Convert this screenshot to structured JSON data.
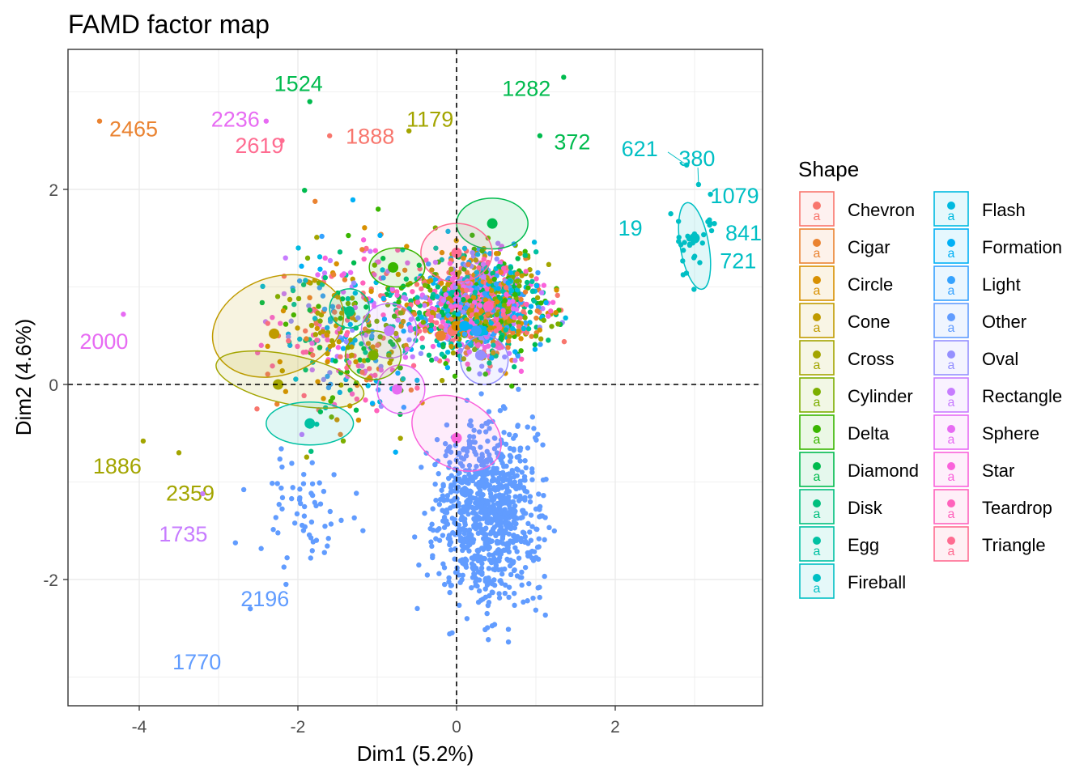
{
  "chart_data": {
    "type": "scatter",
    "title": "FAMD factor map",
    "xlabel": "Dim1 (5.2%)",
    "ylabel": "Dim2 (4.6%)",
    "xlim": [
      -4.8,
      3.9
    ],
    "ylim": [
      -3.3,
      3.4
    ],
    "xticks": [
      -4,
      -2,
      0,
      2
    ],
    "yticks": [
      -2,
      0,
      2
    ],
    "grid": true,
    "reference_lines": {
      "x": 0,
      "y": 0,
      "style": "dashed"
    },
    "legend": {
      "title": "Shape",
      "placement": "right",
      "entries": [
        {
          "name": "Chevron",
          "color": "#F8766D"
        },
        {
          "name": "Cigar",
          "color": "#EA8331"
        },
        {
          "name": "Circle",
          "color": "#D89000"
        },
        {
          "name": "Cone",
          "color": "#C09B00"
        },
        {
          "name": "Cross",
          "color": "#A3A500"
        },
        {
          "name": "Cylinder",
          "color": "#7CAE00"
        },
        {
          "name": "Delta",
          "color": "#39B600"
        },
        {
          "name": "Diamond",
          "color": "#00BB4E"
        },
        {
          "name": "Disk",
          "color": "#00BF7D"
        },
        {
          "name": "Egg",
          "color": "#00C1A3"
        },
        {
          "name": "Fireball",
          "color": "#00BFC4"
        },
        {
          "name": "Flash",
          "color": "#00BAE0"
        },
        {
          "name": "Formation",
          "color": "#00B0F6"
        },
        {
          "name": "Light",
          "color": "#35A2FF"
        },
        {
          "name": "Other",
          "color": "#619CFF"
        },
        {
          "name": "Oval",
          "color": "#9590FF"
        },
        {
          "name": "Rectangle",
          "color": "#C77CFF"
        },
        {
          "name": "Sphere",
          "color": "#E76BF3"
        },
        {
          "name": "Star",
          "color": "#FA62DB"
        },
        {
          "name": "Teardrop",
          "color": "#FF62BC"
        },
        {
          "name": "Triangle",
          "color": "#FF6C91"
        }
      ]
    },
    "labeled_points": [
      {
        "label": "2465",
        "x": -4.5,
        "y": 2.7,
        "color": "#EA8331"
      },
      {
        "label": "2236",
        "x": -2.4,
        "y": 2.7,
        "color": "#E76BF3"
      },
      {
        "label": "1524",
        "x": -1.85,
        "y": 2.9,
        "color": "#00BB4E"
      },
      {
        "label": "2619",
        "x": -2.2,
        "y": 2.5,
        "color": "#FF6C91"
      },
      {
        "label": "1888",
        "x": -1.6,
        "y": 2.55,
        "color": "#F8766D"
      },
      {
        "label": "1179",
        "x": -0.6,
        "y": 2.6,
        "color": "#A3A500"
      },
      {
        "label": "1282",
        "x": 1.35,
        "y": 3.15,
        "color": "#00BB4E"
      },
      {
        "label": "372",
        "x": 1.05,
        "y": 2.55,
        "color": "#00BB4E"
      },
      {
        "label": "621",
        "x": 2.9,
        "y": 2.25,
        "color": "#00BFC4"
      },
      {
        "label": "380",
        "x": 3.05,
        "y": 2.05,
        "color": "#00BFC4"
      },
      {
        "label": "1079",
        "x": 3.2,
        "y": 1.95,
        "color": "#00BFC4"
      },
      {
        "label": "19",
        "x": 2.7,
        "y": 1.75,
        "color": "#00BFC4"
      },
      {
        "label": "841",
        "x": 3.25,
        "y": 1.65,
        "color": "#00BFC4"
      },
      {
        "label": "721",
        "x": 3.1,
        "y": 1.45,
        "color": "#00BFC4"
      },
      {
        "label": "2000",
        "x": -4.2,
        "y": 0.72,
        "color": "#E76BF3"
      },
      {
        "label": "1886",
        "x": -3.95,
        "y": -0.58,
        "color": "#A3A500"
      },
      {
        "label": "2359",
        "x": -3.5,
        "y": -0.7,
        "color": "#A3A500"
      },
      {
        "label": "1735",
        "x": -3.2,
        "y": -1.12,
        "color": "#C77CFF"
      },
      {
        "label": "2196",
        "x": -2.15,
        "y": -2.05,
        "color": "#619CFF"
      },
      {
        "label": "1770",
        "x": -2.6,
        "y": -2.3,
        "color": "#619CFF"
      }
    ],
    "group_centers": [
      {
        "group": "Chevron",
        "x": -0.05,
        "y": 0.55
      },
      {
        "group": "Cigar",
        "x": -0.2,
        "y": 0.5
      },
      {
        "group": "Circle",
        "x": 0.0,
        "y": 0.6
      },
      {
        "group": "Cone",
        "x": -2.3,
        "y": 0.52
      },
      {
        "group": "Cross",
        "x": -2.25,
        "y": 0.0
      },
      {
        "group": "Cylinder",
        "x": -1.05,
        "y": 0.3
      },
      {
        "group": "Delta",
        "x": -0.8,
        "y": 1.2
      },
      {
        "group": "Diamond",
        "x": 0.45,
        "y": 1.65
      },
      {
        "group": "Disk",
        "x": -1.35,
        "y": 0.75
      },
      {
        "group": "Egg",
        "x": -1.85,
        "y": -0.4
      },
      {
        "group": "Fireball",
        "x": 3.0,
        "y": 1.5
      },
      {
        "group": "Flash",
        "x": 0.3,
        "y": 0.55
      },
      {
        "group": "Formation",
        "x": 0.1,
        "y": 0.6
      },
      {
        "group": "Light",
        "x": 0.25,
        "y": 0.55
      },
      {
        "group": "Other",
        "x": 0.1,
        "y": -1.1
      },
      {
        "group": "Oval",
        "x": 0.3,
        "y": 0.3
      },
      {
        "group": "Rectangle",
        "x": -0.85,
        "y": 0.55
      },
      {
        "group": "Sphere",
        "x": -0.75,
        "y": -0.05
      },
      {
        "group": "Star",
        "x": 0.0,
        "y": -0.55
      },
      {
        "group": "Teardrop",
        "x": 0.4,
        "y": 0.8
      },
      {
        "group": "Triangle",
        "x": 0.0,
        "y": 1.35
      }
    ],
    "ellipses": [
      {
        "group": "Cone",
        "cx": -2.25,
        "cy": 0.6,
        "rx": 0.85,
        "ry": 0.5,
        "rotation_deg": 20
      },
      {
        "group": "Cross",
        "cx": -2.1,
        "cy": 0.05,
        "rx": 0.95,
        "ry": 0.25,
        "rotation_deg": -12
      },
      {
        "group": "Egg",
        "cx": -1.85,
        "cy": -0.4,
        "rx": 0.55,
        "ry": 0.22,
        "rotation_deg": 0
      },
      {
        "group": "Diamond",
        "cx": 0.45,
        "cy": 1.65,
        "rx": 0.45,
        "ry": 0.26,
        "rotation_deg": 0
      },
      {
        "group": "Fireball",
        "cx": 3.0,
        "cy": 1.42,
        "rx": 0.18,
        "ry": 0.45,
        "rotation_deg": 10
      },
      {
        "group": "Triangle",
        "cx": 0.0,
        "cy": 1.35,
        "rx": 0.45,
        "ry": 0.3,
        "rotation_deg": 0
      },
      {
        "group": "Delta",
        "cx": -0.75,
        "cy": 1.2,
        "rx": 0.35,
        "ry": 0.2,
        "rotation_deg": 0
      },
      {
        "group": "Disk",
        "cx": -1.35,
        "cy": 0.78,
        "rx": 0.25,
        "ry": 0.2,
        "rotation_deg": 0
      },
      {
        "group": "Rectangle",
        "cx": -0.85,
        "cy": 0.55,
        "rx": 0.35,
        "ry": 0.28,
        "rotation_deg": 0
      },
      {
        "group": "Sphere",
        "cx": -0.7,
        "cy": -0.05,
        "rx": 0.3,
        "ry": 0.25,
        "rotation_deg": 0
      },
      {
        "group": "Star",
        "cx": 0.0,
        "cy": -0.5,
        "rx": 0.6,
        "ry": 0.35,
        "rotation_deg": -30
      },
      {
        "group": "Cylinder",
        "cx": -1.05,
        "cy": 0.3,
        "rx": 0.35,
        "ry": 0.25,
        "rotation_deg": 0
      },
      {
        "group": "Oval",
        "cx": 0.35,
        "cy": 0.25,
        "rx": 0.3,
        "ry": 0.25,
        "rotation_deg": 0
      }
    ]
  }
}
